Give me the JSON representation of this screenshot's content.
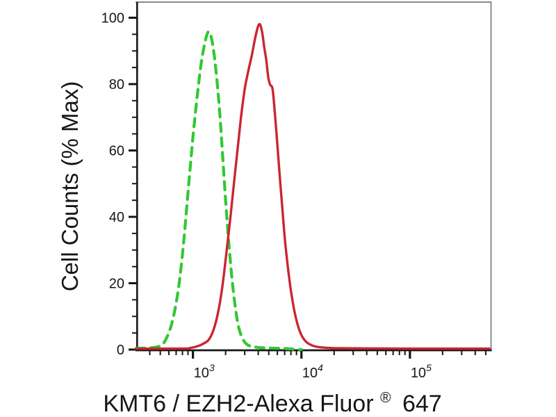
{
  "page": {
    "background": "#ffffff"
  },
  "labels": {
    "y_axis_title": "Cell Counts (% Max)",
    "x_axis_title_main": "KMT6 / EZH2-Alexa Fluor",
    "x_axis_title_sup": "®",
    "x_axis_title_suffix": "647"
  },
  "colors": {
    "axis": "#161616",
    "frame_gray": "#8a8a8a",
    "text": "#161616",
    "green_series": "#32c832",
    "red_series": "#cb2530"
  },
  "chart_data": {
    "type": "line",
    "variant": "flow_cytometry_histogram_overlay",
    "title": "",
    "xlabel": "KMT6 / EZH2-Alexa Fluor® 647",
    "ylabel": "Cell Counts (% Max)",
    "x_scale": "log10",
    "x_domain": [
      300,
      555000
    ],
    "y_domain": [
      0,
      104.5
    ],
    "grid": false,
    "legend_position": "none",
    "x_major_ticks": [
      {
        "value": 1000,
        "base": "10",
        "exp": "3"
      },
      {
        "value": 10000,
        "base": "10",
        "exp": "4"
      },
      {
        "value": 100000,
        "base": "10",
        "exp": "5"
      }
    ],
    "x_minor_ticks": [
      400,
      500,
      600,
      700,
      800,
      900,
      2000,
      3000,
      4000,
      5000,
      6000,
      7000,
      8000,
      9000,
      20000,
      30000,
      40000,
      50000,
      60000,
      70000,
      80000,
      90000,
      200000,
      300000,
      400000,
      500000
    ],
    "y_major_ticks": [
      {
        "value": 0,
        "label": "0"
      },
      {
        "value": 20,
        "label": "20"
      },
      {
        "value": 40,
        "label": "40"
      },
      {
        "value": 60,
        "label": "60"
      },
      {
        "value": 80,
        "label": "80"
      },
      {
        "value": 100,
        "label": "100"
      }
    ],
    "y_minor_ticks": [
      5,
      10,
      15,
      25,
      30,
      35,
      45,
      50,
      55,
      65,
      70,
      75,
      85,
      90,
      95
    ],
    "series": [
      {
        "id": "green-dashed-curve",
        "description": "green dashed histogram",
        "color": "#32c832",
        "line_style": "dashed",
        "peak": {
          "x": 1400,
          "y_percent": 95.8
        },
        "points": [
          [
            300,
            0.4
          ],
          [
            430,
            0.6
          ],
          [
            520,
            1.5
          ],
          [
            580,
            4
          ],
          [
            640,
            8
          ],
          [
            700,
            14
          ],
          [
            760,
            22
          ],
          [
            830,
            34
          ],
          [
            910,
            49
          ],
          [
            1000,
            64
          ],
          [
            1100,
            77
          ],
          [
            1200,
            87
          ],
          [
            1310,
            93.5
          ],
          [
            1400,
            95.8
          ],
          [
            1500,
            93
          ],
          [
            1620,
            85
          ],
          [
            1760,
            72
          ],
          [
            1900,
            56
          ],
          [
            2000,
            45
          ],
          [
            2130,
            33
          ],
          [
            2280,
            22
          ],
          [
            2450,
            13
          ],
          [
            2650,
            6.5
          ],
          [
            2900,
            3
          ],
          [
            3200,
            1.4
          ],
          [
            3700,
            0.8
          ],
          [
            4600,
            0.5
          ],
          [
            6000,
            0.4
          ],
          [
            7300,
            0.3
          ],
          [
            8600,
            0.1
          ],
          [
            10000,
            0.02
          ]
        ]
      },
      {
        "id": "red-solid-curve",
        "description": "red solid histogram",
        "color": "#cb2530",
        "line_style": "solid",
        "peak": {
          "x": 4150,
          "y_percent": 98
        },
        "points": [
          [
            300,
            0.3
          ],
          [
            800,
            0.3
          ],
          [
            950,
            0.5
          ],
          [
            1100,
            1
          ],
          [
            1250,
            1.8
          ],
          [
            1400,
            3
          ],
          [
            1550,
            6
          ],
          [
            1700,
            11
          ],
          [
            1850,
            18
          ],
          [
            2000,
            27
          ],
          [
            2150,
            36
          ],
          [
            2300,
            45
          ],
          [
            2460,
            54
          ],
          [
            2630,
            63
          ],
          [
            2820,
            72
          ],
          [
            3020,
            79
          ],
          [
            3240,
            84
          ],
          [
            3480,
            88.5
          ],
          [
            3700,
            93
          ],
          [
            3950,
            97
          ],
          [
            4150,
            98
          ],
          [
            4350,
            95.5
          ],
          [
            4550,
            91
          ],
          [
            4750,
            87
          ],
          [
            4950,
            82
          ],
          [
            5150,
            79.8
          ],
          [
            5400,
            78.8
          ],
          [
            5600,
            74
          ],
          [
            5900,
            65
          ],
          [
            6250,
            54
          ],
          [
            6650,
            43
          ],
          [
            7050,
            33
          ],
          [
            7550,
            24
          ],
          [
            8150,
            16
          ],
          [
            8900,
            9.5
          ],
          [
            9800,
            5
          ],
          [
            11000,
            2.4
          ],
          [
            12700,
            1.2
          ],
          [
            15000,
            0.7
          ],
          [
            20000,
            0.45
          ],
          [
            40000,
            0.35
          ],
          [
            100000,
            0.3
          ],
          [
            300000,
            0.3
          ],
          [
            540000,
            0.3
          ]
        ]
      }
    ]
  }
}
